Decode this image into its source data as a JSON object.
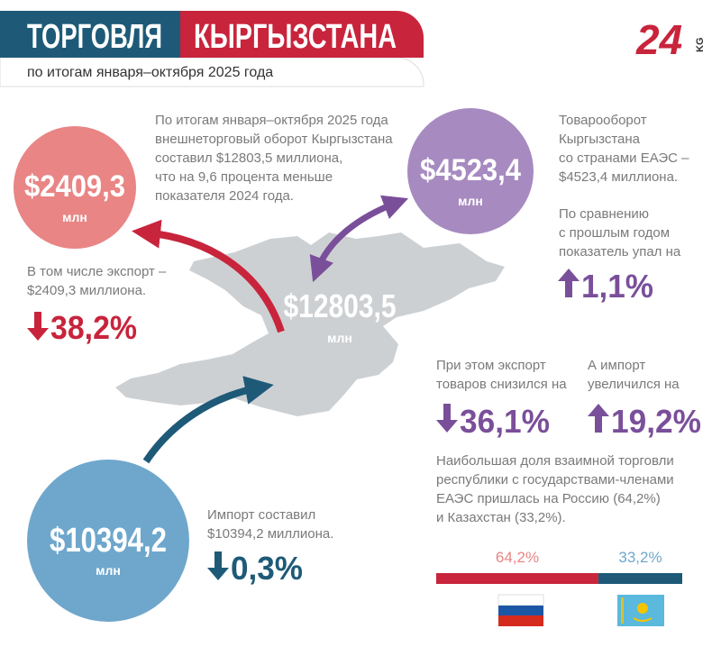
{
  "header": {
    "title_left": "ТОРГОВЛЯ",
    "title_right": "КЫРГЫЗСТАНА",
    "subtitle": "по итогам января–октября 2025 года",
    "logo": "24",
    "logo_suffix": "KG"
  },
  "total": {
    "amount": "$12803,5",
    "unit": "млн",
    "text": [
      "По итогам января–октября 2025 года",
      "внешнеторговый оборот Кыргызстана",
      "составил $12803,5 миллиона,",
      "что на 9,6 процента меньше",
      "показателя 2024 года."
    ]
  },
  "export": {
    "amount": "$2409,3",
    "unit": "млн",
    "text": [
      "В том числе экспорт –",
      "$2409,3 миллиона."
    ],
    "change": "38,2%"
  },
  "import": {
    "amount": "$10394,2",
    "unit": "млн",
    "text": [
      "Импорт составил",
      "$10394,2 миллиона."
    ],
    "change": "0,3%"
  },
  "eaeu": {
    "amount": "$4523,4",
    "unit": "млн",
    "text": [
      "Товарооборот",
      "Кыргызстана",
      "со странами ЕАЭС –",
      "$4523,4 миллиона."
    ],
    "compare_text": [
      "По сравнению",
      "с прошлым годом",
      "показатель упал на"
    ],
    "change": "1,1%",
    "export_text": [
      "При этом экспорт",
      "товаров снизился на"
    ],
    "export_change": "36,1%",
    "import_text": [
      "А импорт",
      "увеличился на"
    ],
    "import_change": "19,2%",
    "share_text": [
      "Наибольшая доля взаимной торговли",
      "республики с государствами-членами",
      "ЕАЭС пришлась на Россию (64,2%)",
      "и Казахстан (33,2%)."
    ],
    "russia_share": {
      "value": 64.2,
      "label": "64,2%"
    },
    "kazakhstan_share": {
      "value": 33.2,
      "label": "33,2%"
    }
  }
}
